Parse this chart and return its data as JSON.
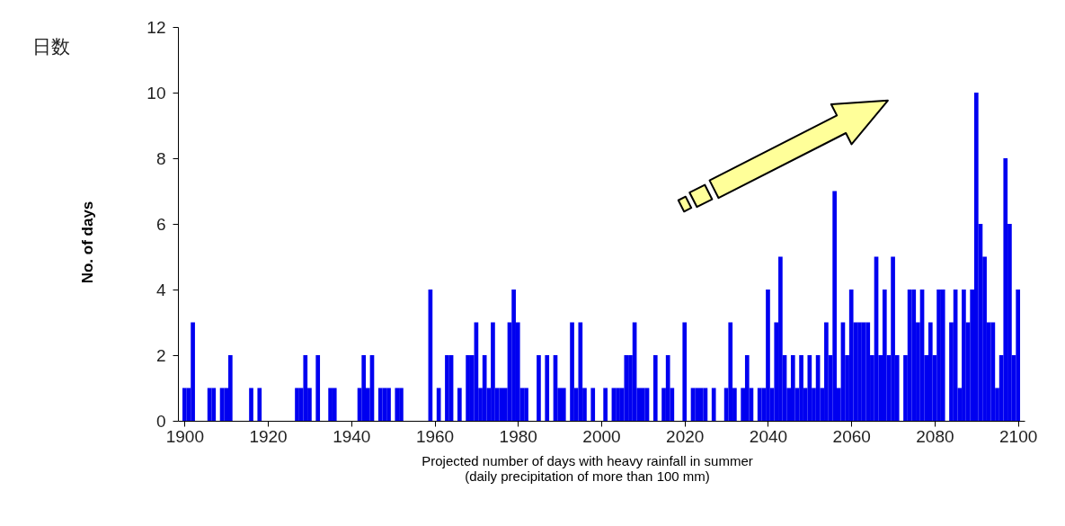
{
  "chart_data": {
    "type": "bar",
    "xlabel": "Projected number of days with heavy rainfall in summer\n(daily precipitation of more than 100 mm)",
    "ylabel": "No. of days",
    "annotations": [
      "日数"
    ],
    "color": "#0000f0",
    "x": [
      1900,
      1901,
      1902,
      1903,
      1904,
      1905,
      1906,
      1907,
      1908,
      1909,
      1910,
      1911,
      1912,
      1913,
      1914,
      1915,
      1916,
      1917,
      1918,
      1919,
      1920,
      1921,
      1922,
      1923,
      1924,
      1925,
      1926,
      1927,
      1928,
      1929,
      1930,
      1931,
      1932,
      1933,
      1934,
      1935,
      1936,
      1937,
      1938,
      1939,
      1940,
      1941,
      1942,
      1943,
      1944,
      1945,
      1946,
      1947,
      1948,
      1949,
      1950,
      1951,
      1952,
      1953,
      1954,
      1955,
      1956,
      1957,
      1958,
      1959,
      1960,
      1961,
      1962,
      1963,
      1964,
      1965,
      1966,
      1967,
      1968,
      1969,
      1970,
      1971,
      1972,
      1973,
      1974,
      1975,
      1976,
      1977,
      1978,
      1979,
      1980,
      1981,
      1982,
      1983,
      1984,
      1985,
      1986,
      1987,
      1988,
      1989,
      1990,
      1991,
      1992,
      1993,
      1994,
      1995,
      1996,
      1997,
      1998,
      1999,
      2000,
      2001,
      2002,
      2003,
      2004,
      2005,
      2006,
      2007,
      2008,
      2009,
      2010,
      2011,
      2012,
      2013,
      2014,
      2015,
      2016,
      2017,
      2018,
      2019,
      2020,
      2021,
      2022,
      2023,
      2024,
      2025,
      2026,
      2027,
      2028,
      2029,
      2030,
      2031,
      2032,
      2033,
      2034,
      2035,
      2036,
      2037,
      2038,
      2039,
      2040,
      2041,
      2042,
      2043,
      2044,
      2045,
      2046,
      2047,
      2048,
      2049,
      2050,
      2051,
      2052,
      2053,
      2054,
      2055,
      2056,
      2057,
      2058,
      2059,
      2060,
      2061,
      2062,
      2063,
      2064,
      2065,
      2066,
      2067,
      2068,
      2069,
      2070,
      2071,
      2072,
      2073,
      2074,
      2075,
      2076,
      2077,
      2078,
      2079,
      2080,
      2081,
      2082,
      2083,
      2084,
      2085,
      2086,
      2087,
      2088,
      2089,
      2090,
      2091,
      2092,
      2093,
      2094,
      2095,
      2096,
      2097,
      2098,
      2099,
      2100
    ],
    "values": [
      1,
      1,
      3,
      0,
      0,
      0,
      1,
      1,
      0,
      1,
      1,
      2,
      0,
      0,
      0,
      0,
      1,
      0,
      1,
      0,
      0,
      0,
      0,
      0,
      0,
      0,
      0,
      1,
      1,
      2,
      1,
      0,
      2,
      0,
      0,
      1,
      1,
      0,
      0,
      0,
      0,
      0,
      1,
      2,
      1,
      2,
      0,
      1,
      1,
      1,
      0,
      1,
      1,
      0,
      0,
      0,
      0,
      0,
      0,
      4,
      0,
      1,
      0,
      2,
      2,
      0,
      1,
      0,
      2,
      2,
      3,
      1,
      2,
      1,
      3,
      1,
      1,
      1,
      3,
      4,
      3,
      1,
      1,
      0,
      0,
      2,
      0,
      2,
      0,
      2,
      1,
      1,
      0,
      3,
      1,
      3,
      1,
      0,
      1,
      0,
      0,
      1,
      0,
      1,
      1,
      1,
      2,
      2,
      3,
      1,
      1,
      1,
      0,
      2,
      0,
      1,
      2,
      1,
      0,
      0,
      3,
      0,
      1,
      1,
      1,
      1,
      0,
      1,
      0,
      0,
      1,
      3,
      1,
      0,
      1,
      2,
      1,
      0,
      1,
      1,
      4,
      1,
      3,
      5,
      2,
      1,
      2,
      1,
      2,
      1,
      2,
      1,
      2,
      1,
      3,
      2,
      7,
      1,
      3,
      2,
      4,
      3,
      3,
      3,
      3,
      2,
      5,
      2,
      4,
      2,
      5,
      2,
      0,
      2,
      4,
      4,
      3,
      4,
      2,
      3,
      2,
      4,
      4,
      0,
      3,
      4,
      1,
      4,
      3,
      4,
      10,
      6,
      5,
      3,
      3,
      1,
      2,
      8,
      6,
      2,
      4
    ],
    "xlim": [
      1899.5,
      2100.5
    ],
    "xticks": [
      1900,
      1920,
      1940,
      1960,
      1980,
      2000,
      2020,
      2040,
      2060,
      2080,
      2100
    ],
    "ylim": [
      0,
      12
    ],
    "yticks": [
      0,
      2,
      4,
      6,
      8,
      10,
      12
    ]
  }
}
